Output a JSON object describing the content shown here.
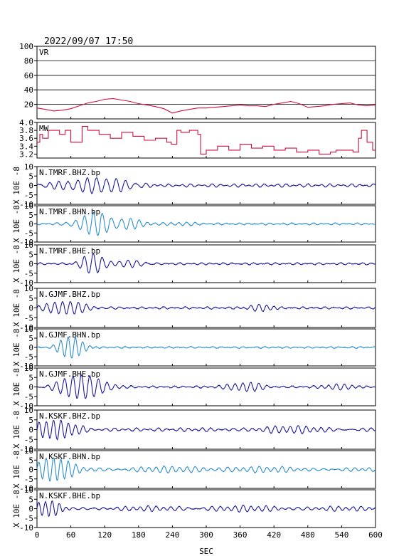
{
  "header": {
    "datetime": "2022/09/07 17:50"
  },
  "chart_data": {
    "type": "line",
    "xlabel": "SEC",
    "xlim": [
      0,
      600
    ],
    "xticks": [
      0,
      60,
      120,
      180,
      240,
      300,
      360,
      420,
      480,
      540,
      600
    ],
    "panels": [
      {
        "id": "vr",
        "label": "VR",
        "ylim": [
          0,
          100
        ],
        "yticks": [
          20,
          40,
          60,
          80,
          100
        ],
        "grid_lines": [
          20,
          40,
          60,
          80
        ],
        "color": "#d0103a",
        "step": false,
        "series": {
          "name": "VR",
          "x": [
            0,
            15,
            30,
            45,
            60,
            75,
            90,
            105,
            120,
            135,
            150,
            165,
            180,
            195,
            210,
            225,
            240,
            255,
            270,
            285,
            300,
            315,
            330,
            345,
            360,
            375,
            390,
            405,
            420,
            435,
            450,
            465,
            480,
            495,
            510,
            525,
            540,
            555,
            570,
            585,
            600
          ],
          "y": [
            15,
            13,
            11,
            12,
            14,
            18,
            22,
            24,
            27,
            28,
            26,
            24,
            21,
            19,
            17,
            14,
            8,
            11,
            13,
            15,
            15,
            16,
            17,
            18,
            19,
            18,
            18,
            17,
            20,
            22,
            24,
            21,
            16,
            17,
            18,
            20,
            21,
            22,
            19,
            18,
            19
          ]
        }
      },
      {
        "id": "mw",
        "label": "MW",
        "ylim": [
          3.1,
          4.0
        ],
        "yticks": [
          3.2,
          3.4,
          3.6,
          3.8,
          4.0
        ],
        "color": "#d0103a",
        "step": true,
        "series": {
          "name": "MW",
          "x": [
            0,
            5,
            10,
            20,
            40,
            50,
            60,
            80,
            90,
            110,
            130,
            150,
            170,
            190,
            210,
            230,
            238,
            248,
            255,
            270,
            285,
            290,
            300,
            320,
            340,
            360,
            380,
            400,
            420,
            440,
            460,
            480,
            500,
            520,
            530,
            560,
            570,
            575,
            585,
            595,
            600
          ],
          "y": [
            3.5,
            3.7,
            3.6,
            3.8,
            3.7,
            3.8,
            3.5,
            3.9,
            3.8,
            3.7,
            3.6,
            3.75,
            3.65,
            3.55,
            3.6,
            3.5,
            3.45,
            3.8,
            3.75,
            3.8,
            3.7,
            3.2,
            3.3,
            3.4,
            3.3,
            3.45,
            3.35,
            3.4,
            3.3,
            3.35,
            3.25,
            3.3,
            3.2,
            3.25,
            3.3,
            3.25,
            3.6,
            3.8,
            3.5,
            3.3,
            3.3
          ]
        }
      },
      {
        "id": "tmrf-bhz",
        "label": "N.TMRF.BHZ.bp",
        "ylabel": "X 10E -8",
        "ylim": [
          -10,
          10
        ],
        "yticks": [
          -10,
          -5,
          0,
          5,
          10
        ],
        "color": "#1a1a9c",
        "wave": {
          "bursts": [
            {
              "center": 100,
              "width": 70,
              "amp": 4,
              "period": 17
            }
          ],
          "base": 0.8
        },
        "series": {
          "name": "N.TMRF.BHZ.bp"
        }
      },
      {
        "id": "tmrf-bhn",
        "label": "N.TMRF.BHN.bp",
        "ylabel": "X 10E -8",
        "ylim": [
          -10,
          10
        ],
        "yticks": [
          -10,
          -5,
          0,
          5,
          10
        ],
        "color": "#2a8fd0",
        "wave": {
          "bursts": [
            {
              "center": 105,
              "width": 35,
              "amp": 6.5,
              "period": 16
            },
            {
              "center": 170,
              "width": 30,
              "amp": 2.5,
              "period": 15
            },
            {
              "center": 245,
              "width": 35,
              "amp": 1.2,
              "period": 14
            }
          ],
          "base": 0.5
        },
        "series": {
          "name": "N.TMRF.BHN.bp"
        }
      },
      {
        "id": "tmrf-bhe",
        "label": "N.TMRF.BHE.bp",
        "ylabel": "X 10E -8",
        "ylim": [
          -10,
          10
        ],
        "yticks": [
          -10,
          -5,
          0,
          5,
          10
        ],
        "color": "#1a1a9c",
        "wave": {
          "bursts": [
            {
              "center": 100,
              "width": 25,
              "amp": 5,
              "period": 16
            },
            {
              "center": 160,
              "width": 40,
              "amp": 1.5,
              "period": 16
            }
          ],
          "base": 0.5
        },
        "series": {
          "name": "N.TMRF.BHE.bp"
        }
      },
      {
        "id": "gjmf-bhz",
        "label": "N.GJMF.BHZ.bp",
        "ylabel": "X 10E -8",
        "ylim": [
          -10,
          10
        ],
        "yticks": [
          -10,
          -5,
          0,
          5,
          10
        ],
        "color": "#1a1a9c",
        "wave": {
          "bursts": [
            {
              "center": 55,
              "width": 45,
              "amp": 3.5,
              "period": 14
            },
            {
              "center": 400,
              "width": 25,
              "amp": 1.5,
              "period": 14
            }
          ],
          "base": 0.5
        },
        "series": {
          "name": "N.GJMF.BHZ.bp"
        }
      },
      {
        "id": "gjmf-bhn",
        "label": "N.GJMF.BHN.bp",
        "ylabel": "X 10E -8",
        "ylim": [
          -10,
          10
        ],
        "yticks": [
          -10,
          -5,
          0,
          5,
          10
        ],
        "color": "#2a8fd0",
        "wave": {
          "bursts": [
            {
              "center": 60,
              "width": 25,
              "amp": 6,
              "period": 13
            }
          ],
          "base": 0.4
        },
        "series": {
          "name": "N.GJMF.BHN.bp"
        }
      },
      {
        "id": "gjmf-bhe",
        "label": "N.GJMF.BHE.bp",
        "ylabel": "X 10E -8",
        "ylim": [
          -10,
          10
        ],
        "yticks": [
          -10,
          -5,
          0,
          5,
          10
        ],
        "color": "#1a1a9c",
        "wave": {
          "bursts": [
            {
              "center": 80,
              "width": 45,
              "amp": 6.5,
              "period": 15
            },
            {
              "center": 375,
              "width": 40,
              "amp": 2.5,
              "period": 14
            },
            {
              "center": 540,
              "width": 40,
              "amp": 1.2,
              "period": 14
            }
          ],
          "base": 0.5
        },
        "series": {
          "name": "N.GJMF.BHE.bp"
        }
      },
      {
        "id": "kskf-bhz",
        "label": "N.KSKF.BHZ.bp",
        "ylabel": "X 10E -8",
        "ylim": [
          -10,
          10
        ],
        "yticks": [
          -10,
          -5,
          0,
          5,
          10
        ],
        "color": "#1a1a9c",
        "wave": {
          "bursts": [
            {
              "center": 30,
              "width": 50,
              "amp": 5,
              "period": 13
            },
            {
              "center": 450,
              "width": 120,
              "amp": 1.3,
              "period": 14
            }
          ],
          "base": 0.8
        },
        "series": {
          "name": "N.KSKF.BHZ.bp"
        }
      },
      {
        "id": "kskf-bhn",
        "label": "N.KSKF.BHN.bp",
        "ylabel": "X 10E -8",
        "ylim": [
          -10,
          10
        ],
        "yticks": [
          -10,
          -5,
          0,
          5,
          10
        ],
        "color": "#2a8fd0",
        "wave": {
          "bursts": [
            {
              "center": 30,
              "width": 40,
              "amp": 5.5,
              "period": 13
            },
            {
              "center": 300,
              "width": 250,
              "amp": 1.2,
              "period": 14
            }
          ],
          "base": 0.7
        },
        "series": {
          "name": "N.KSKF.BHN.bp"
        }
      },
      {
        "id": "kskf-bhe",
        "label": "N.KSKF.BHE.bp",
        "ylabel": "X 10E -8",
        "ylim": [
          -10,
          10
        ],
        "yticks": [
          -10,
          -5,
          0,
          5,
          10
        ],
        "color": "#1a1a9c",
        "wave": {
          "bursts": [
            {
              "center": 20,
              "width": 30,
              "amp": 3.5,
              "period": 12
            },
            {
              "center": 350,
              "width": 260,
              "amp": 1,
              "period": 14
            }
          ],
          "base": 0.8
        },
        "series": {
          "name": "N.KSKF.BHE.bp"
        }
      }
    ]
  }
}
